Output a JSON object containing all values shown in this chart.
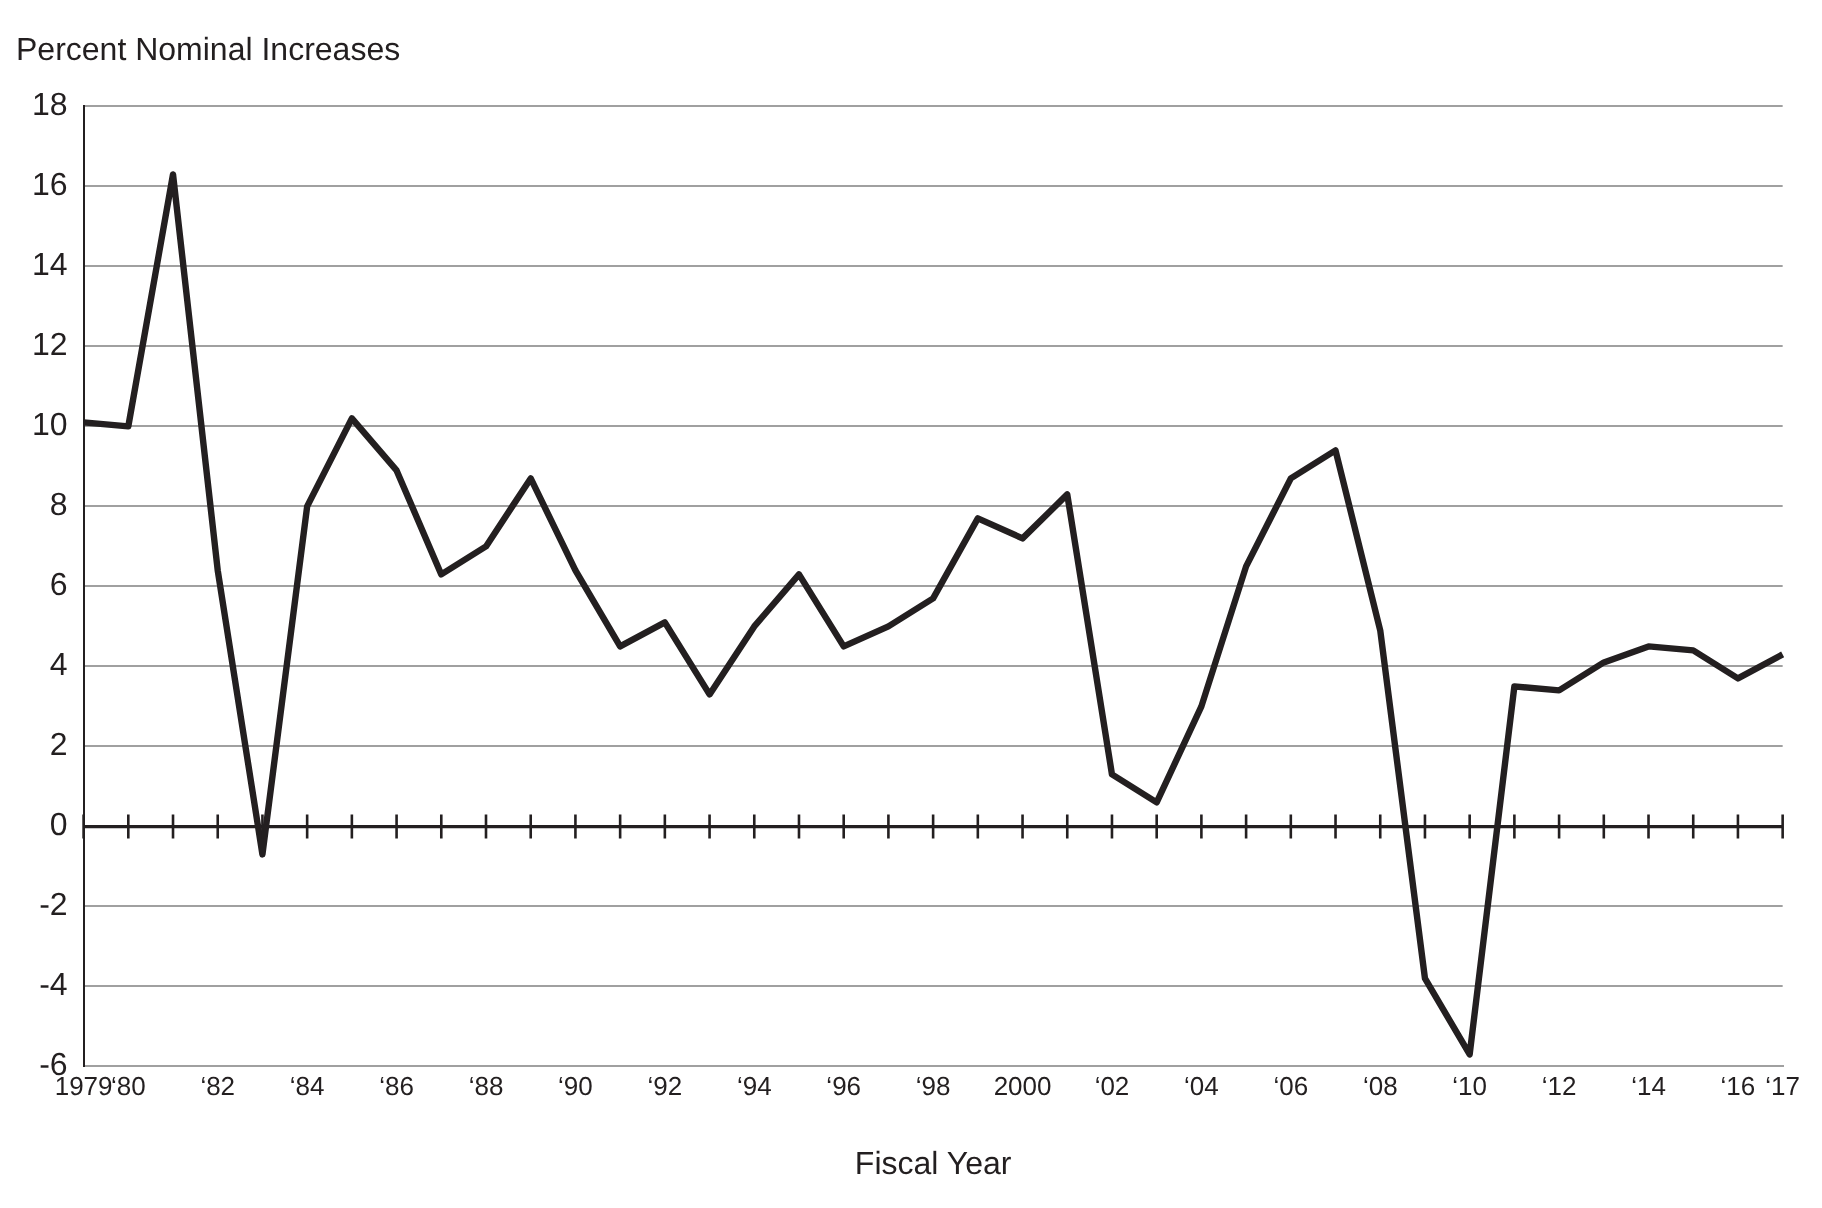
{
  "chart_data": {
    "type": "line",
    "title": "Percent Nominal Increases",
    "xlabel": "Fiscal Year",
    "categories": [
      "1979",
      "‘80",
      null,
      "‘82",
      null,
      "‘84",
      null,
      "‘86",
      null,
      "‘88",
      null,
      "‘90",
      null,
      "‘92",
      null,
      "‘94",
      null,
      "‘96",
      null,
      "‘98",
      null,
      "2000",
      null,
      "‘02",
      null,
      "‘04",
      null,
      "‘06",
      null,
      "‘08",
      null,
      "‘10",
      null,
      "‘12",
      null,
      "‘14",
      null,
      "‘16",
      "‘17"
    ],
    "series": [
      {
        "color": "#231f20",
        "values": [
          10.1,
          10.0,
          16.3,
          6.4,
          -0.7,
          8.0,
          10.2,
          8.9,
          6.3,
          7.0,
          8.7,
          6.4,
          4.5,
          5.1,
          3.3,
          5.0,
          6.3,
          4.5,
          5.0,
          5.7,
          7.7,
          7.2,
          8.3,
          1.3,
          0.6,
          3.0,
          6.5,
          8.7,
          9.4,
          4.9,
          -3.8,
          -5.7,
          3.5,
          3.4,
          4.1,
          4.5,
          4.4,
          3.7,
          4.3
        ]
      }
    ],
    "ylim": [
      -6,
      18
    ],
    "yticks": [
      -6,
      -4,
      -2,
      0,
      2,
      4,
      6,
      8,
      10,
      12,
      14,
      16,
      18
    ],
    "grid": "y",
    "legend": false,
    "marker": "none",
    "line_style": "solid"
  }
}
